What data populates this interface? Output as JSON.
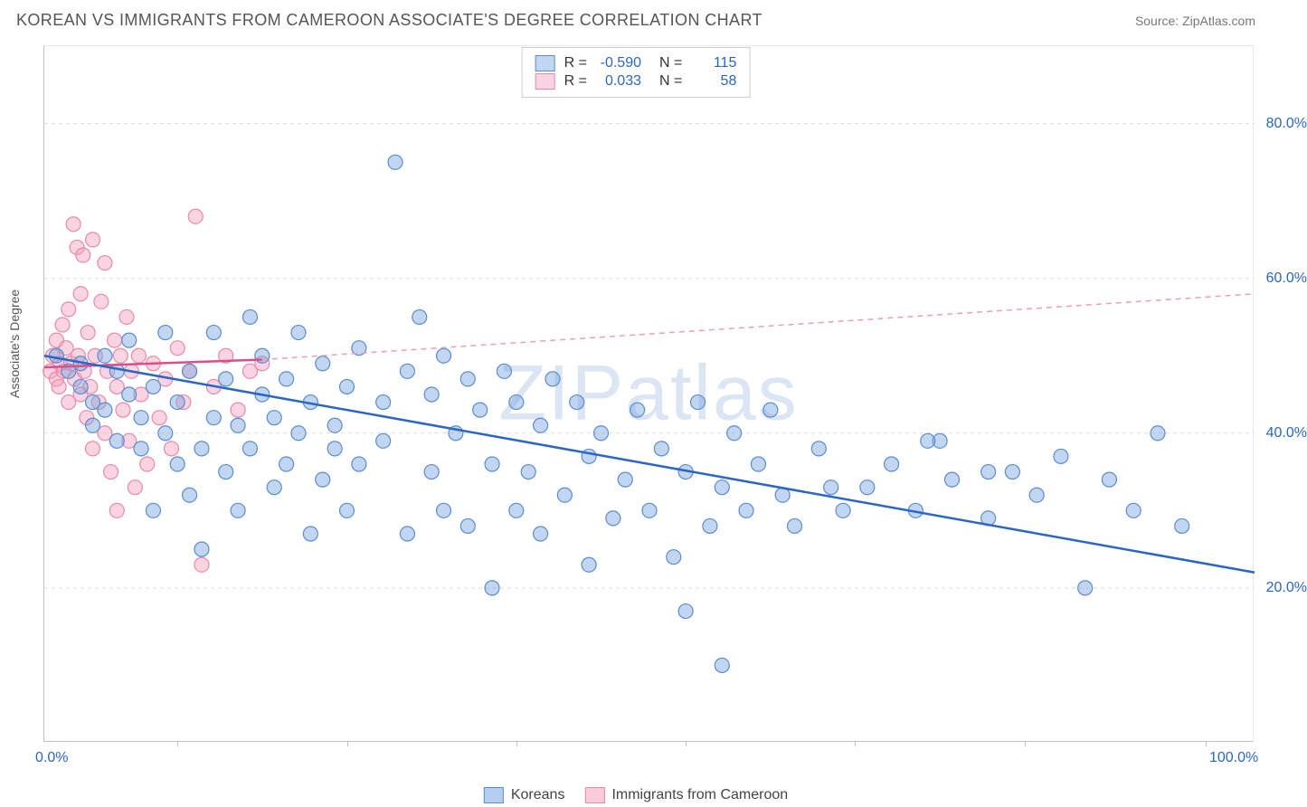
{
  "title": "KOREAN VS IMMIGRANTS FROM CAMEROON ASSOCIATE'S DEGREE CORRELATION CHART",
  "source": "Source: ZipAtlas.com",
  "y_axis_label": "Associate's Degree",
  "watermark": "ZIPatlas",
  "chart": {
    "type": "scatter",
    "xlim": [
      0,
      100
    ],
    "ylim": [
      0,
      90
    ],
    "x_ticks": [
      0,
      100
    ],
    "x_tick_labels": [
      "0.0%",
      "100.0%"
    ],
    "x_tick_marks": [
      11,
      25,
      39,
      53,
      67,
      81,
      96
    ],
    "y_ticks": [
      20,
      40,
      60,
      80
    ],
    "y_tick_labels": [
      "20.0%",
      "40.0%",
      "60.0%",
      "80.0%"
    ],
    "grid_color": "#dcdcdc",
    "background_color": "#ffffff",
    "series": [
      {
        "name": "Koreans",
        "color_fill": "rgba(120,165,225,0.45)",
        "color_stroke": "#5a8cd0",
        "marker_radius": 8,
        "trend": {
          "x1": 0,
          "y1": 50,
          "x2": 100,
          "y2": 22,
          "color": "#2a66c8",
          "width": 2.5,
          "dash": ""
        },
        "trend_ext": null,
        "stats": {
          "R": "-0.590",
          "N": "115"
        },
        "points": [
          [
            1,
            50
          ],
          [
            2,
            48
          ],
          [
            3,
            49
          ],
          [
            3,
            46
          ],
          [
            4,
            44
          ],
          [
            4,
            41
          ],
          [
            5,
            50
          ],
          [
            5,
            43
          ],
          [
            6,
            48
          ],
          [
            6,
            39
          ],
          [
            7,
            45
          ],
          [
            7,
            52
          ],
          [
            8,
            42
          ],
          [
            8,
            38
          ],
          [
            9,
            46
          ],
          [
            9,
            30
          ],
          [
            10,
            40
          ],
          [
            10,
            53
          ],
          [
            11,
            44
          ],
          [
            11,
            36
          ],
          [
            12,
            48
          ],
          [
            12,
            32
          ],
          [
            13,
            38
          ],
          [
            13,
            25
          ],
          [
            14,
            42
          ],
          [
            14,
            53
          ],
          [
            15,
            47
          ],
          [
            15,
            35
          ],
          [
            16,
            30
          ],
          [
            16,
            41
          ],
          [
            17,
            55
          ],
          [
            17,
            38
          ],
          [
            18,
            45
          ],
          [
            18,
            50
          ],
          [
            19,
            33
          ],
          [
            19,
            42
          ],
          [
            20,
            47
          ],
          [
            20,
            36
          ],
          [
            21,
            40
          ],
          [
            21,
            53
          ],
          [
            22,
            27
          ],
          [
            22,
            44
          ],
          [
            23,
            49
          ],
          [
            23,
            34
          ],
          [
            24,
            41
          ],
          [
            24,
            38
          ],
          [
            25,
            46
          ],
          [
            25,
            30
          ],
          [
            26,
            51
          ],
          [
            26,
            36
          ],
          [
            28,
            44
          ],
          [
            28,
            39
          ],
          [
            29,
            75
          ],
          [
            30,
            27
          ],
          [
            30,
            48
          ],
          [
            31,
            55
          ],
          [
            32,
            35
          ],
          [
            32,
            45
          ],
          [
            33,
            50
          ],
          [
            33,
            30
          ],
          [
            34,
            40
          ],
          [
            35,
            28
          ],
          [
            35,
            47
          ],
          [
            36,
            43
          ],
          [
            37,
            20
          ],
          [
            37,
            36
          ],
          [
            38,
            48
          ],
          [
            39,
            30
          ],
          [
            39,
            44
          ],
          [
            40,
            35
          ],
          [
            41,
            27
          ],
          [
            41,
            41
          ],
          [
            42,
            47
          ],
          [
            43,
            32
          ],
          [
            44,
            44
          ],
          [
            45,
            23
          ],
          [
            45,
            37
          ],
          [
            46,
            40
          ],
          [
            47,
            29
          ],
          [
            48,
            34
          ],
          [
            49,
            43
          ],
          [
            50,
            30
          ],
          [
            51,
            38
          ],
          [
            52,
            24
          ],
          [
            53,
            17
          ],
          [
            53,
            35
          ],
          [
            54,
            44
          ],
          [
            55,
            28
          ],
          [
            56,
            10
          ],
          [
            56,
            33
          ],
          [
            57,
            40
          ],
          [
            58,
            30
          ],
          [
            59,
            36
          ],
          [
            60,
            43
          ],
          [
            61,
            32
          ],
          [
            62,
            28
          ],
          [
            64,
            38
          ],
          [
            66,
            30
          ],
          [
            68,
            33
          ],
          [
            70,
            36
          ],
          [
            72,
            30
          ],
          [
            74,
            39
          ],
          [
            75,
            34
          ],
          [
            78,
            29
          ],
          [
            80,
            35
          ],
          [
            82,
            32
          ],
          [
            84,
            37
          ],
          [
            86,
            20
          ],
          [
            88,
            34
          ],
          [
            90,
            30
          ],
          [
            92,
            40
          ],
          [
            94,
            28
          ],
          [
            73,
            39
          ],
          [
            78,
            35
          ],
          [
            65,
            33
          ]
        ]
      },
      {
        "name": "Immigrants from Cameroon",
        "color_fill": "rgba(245,160,190,0.45)",
        "color_stroke": "#e88aa8",
        "marker_radius": 8,
        "trend": {
          "x1": 0,
          "y1": 48.5,
          "x2": 18,
          "y2": 49.5,
          "color": "#d94f87",
          "width": 2.5,
          "dash": ""
        },
        "trend_ext": {
          "x1": 18,
          "y1": 49.5,
          "x2": 100,
          "y2": 58,
          "color": "#e8a0b8",
          "width": 1.5,
          "dash": "6,5"
        },
        "stats": {
          "R": "0.033",
          "N": "58"
        },
        "points": [
          [
            0.5,
            48
          ],
          [
            0.7,
            50
          ],
          [
            1,
            47
          ],
          [
            1,
            52
          ],
          [
            1.2,
            46
          ],
          [
            1.3,
            49
          ],
          [
            1.5,
            54
          ],
          [
            1.6,
            48
          ],
          [
            1.8,
            51
          ],
          [
            2,
            44
          ],
          [
            2,
            56
          ],
          [
            2.2,
            49
          ],
          [
            2.4,
            67
          ],
          [
            2.5,
            47
          ],
          [
            2.7,
            64
          ],
          [
            2.8,
            50
          ],
          [
            3,
            58
          ],
          [
            3,
            45
          ],
          [
            3.2,
            63
          ],
          [
            3.3,
            48
          ],
          [
            3.5,
            42
          ],
          [
            3.6,
            53
          ],
          [
            3.8,
            46
          ],
          [
            4,
            65
          ],
          [
            4,
            38
          ],
          [
            4.2,
            50
          ],
          [
            4.5,
            44
          ],
          [
            4.7,
            57
          ],
          [
            5,
            62
          ],
          [
            5,
            40
          ],
          [
            5.2,
            48
          ],
          [
            5.5,
            35
          ],
          [
            5.8,
            52
          ],
          [
            6,
            46
          ],
          [
            6,
            30
          ],
          [
            6.3,
            50
          ],
          [
            6.5,
            43
          ],
          [
            6.8,
            55
          ],
          [
            7,
            39
          ],
          [
            7.2,
            48
          ],
          [
            7.5,
            33
          ],
          [
            7.8,
            50
          ],
          [
            8,
            45
          ],
          [
            8.5,
            36
          ],
          [
            9,
            49
          ],
          [
            9.5,
            42
          ],
          [
            10,
            47
          ],
          [
            10.5,
            38
          ],
          [
            11,
            51
          ],
          [
            11.5,
            44
          ],
          [
            12,
            48
          ],
          [
            12.5,
            68
          ],
          [
            13,
            23
          ],
          [
            14,
            46
          ],
          [
            15,
            50
          ],
          [
            16,
            43
          ],
          [
            17,
            48
          ],
          [
            18,
            49
          ]
        ]
      }
    ]
  },
  "legend_bottom": [
    {
      "label": "Koreans",
      "fill": "rgba(120,165,225,0.55)",
      "stroke": "#5a8cd0"
    },
    {
      "label": "Immigrants from Cameroon",
      "fill": "rgba(245,160,190,0.55)",
      "stroke": "#e88aa8"
    }
  ]
}
